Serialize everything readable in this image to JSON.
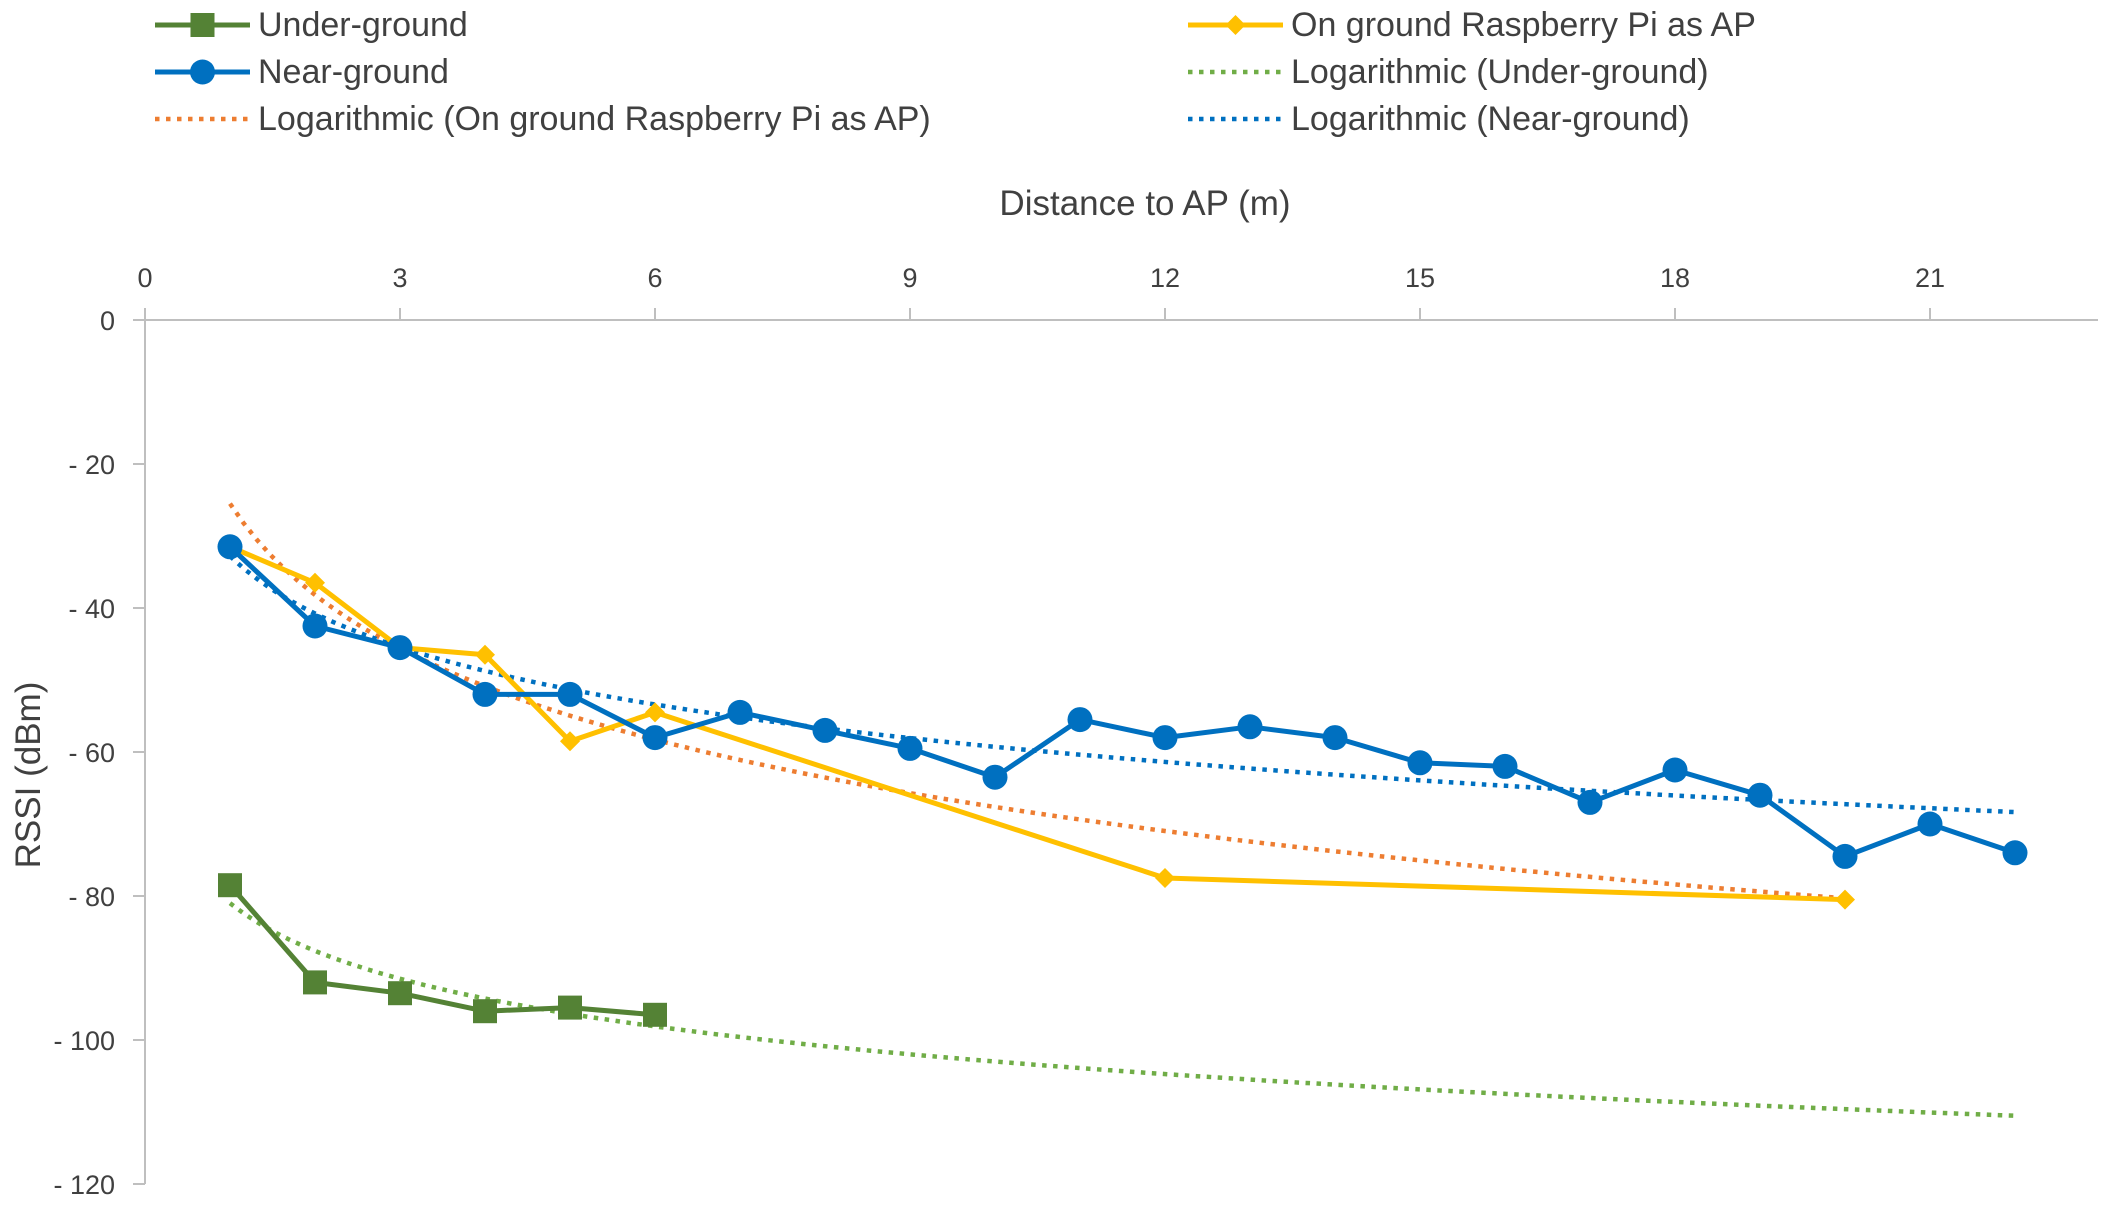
{
  "chart_data": {
    "type": "line",
    "title": "",
    "xlabel": "Distance to AP (m)",
    "ylabel": "RSSI (dBm)",
    "x_axis_position": "top",
    "xlim": [
      0,
      22.5
    ],
    "ylim": [
      -120,
      0
    ],
    "xticks": [
      0,
      3,
      6,
      9,
      12,
      15,
      18,
      21
    ],
    "yticks": [
      0,
      -20,
      -40,
      -60,
      -80,
      -100,
      -120
    ],
    "ytick_labels": [
      "0",
      "- 20",
      "- 40",
      "- 60",
      "- 80",
      "- 100",
      "- 120"
    ],
    "grid": false,
    "legend_position": "top",
    "series": [
      {
        "name": "Under-ground",
        "color": "#548235",
        "marker": "square",
        "x": [
          1,
          2,
          3,
          4,
          5,
          6
        ],
        "values": [
          -78.5,
          -92,
          -93.5,
          -96,
          -95.5,
          -96.5
        ]
      },
      {
        "name": "On ground Raspberry Pi as AP",
        "color": "#FFC000",
        "marker": "diamond",
        "x": [
          1,
          2,
          3,
          4,
          5,
          6,
          12,
          20
        ],
        "values": [
          -31.5,
          -36.5,
          -45.5,
          -46.5,
          -58.5,
          -54.5,
          -77.5,
          -80.5
        ]
      },
      {
        "name": "Near-ground",
        "color": "#0070C0",
        "marker": "circle",
        "x": [
          1,
          2,
          3,
          4,
          5,
          6,
          7,
          8,
          9,
          10,
          11,
          12,
          13,
          14,
          15,
          16,
          17,
          18,
          19,
          20,
          21,
          22
        ],
        "values": [
          -31.5,
          -42.5,
          -45.5,
          -52,
          -52,
          -58,
          -54.5,
          -57,
          -59.5,
          -63.5,
          -55.5,
          -58,
          -56.5,
          -58,
          -61.5,
          -62,
          -67,
          -62.5,
          -66,
          -74.5,
          -70,
          -74
        ]
      },
      {
        "name": "Logarithmic (Under-ground)",
        "color": "#70AD47",
        "style": "dotted",
        "trendline": "log",
        "x_range": [
          1,
          22
        ],
        "a": -81.0,
        "b": -9.55
      },
      {
        "name": "Logarithmic (On ground Raspberry Pi as AP)",
        "color": "#ED7D31",
        "style": "dotted",
        "trendline": "log",
        "x_range": [
          1,
          20
        ],
        "a": -25.5,
        "b": -18.3
      },
      {
        "name": "Logarithmic (Near-ground)",
        "color": "#0070C0",
        "style": "dotted",
        "trendline": "log",
        "x_range": [
          1,
          22
        ],
        "a": -32.8,
        "b": -11.5
      }
    ],
    "legend": [
      "Under-ground",
      "On ground Raspberry Pi as AP",
      "Near-ground",
      "Logarithmic (Under-ground)",
      "Logarithmic (On ground Raspberry Pi as AP)",
      "Logarithmic (Near-ground)"
    ]
  }
}
